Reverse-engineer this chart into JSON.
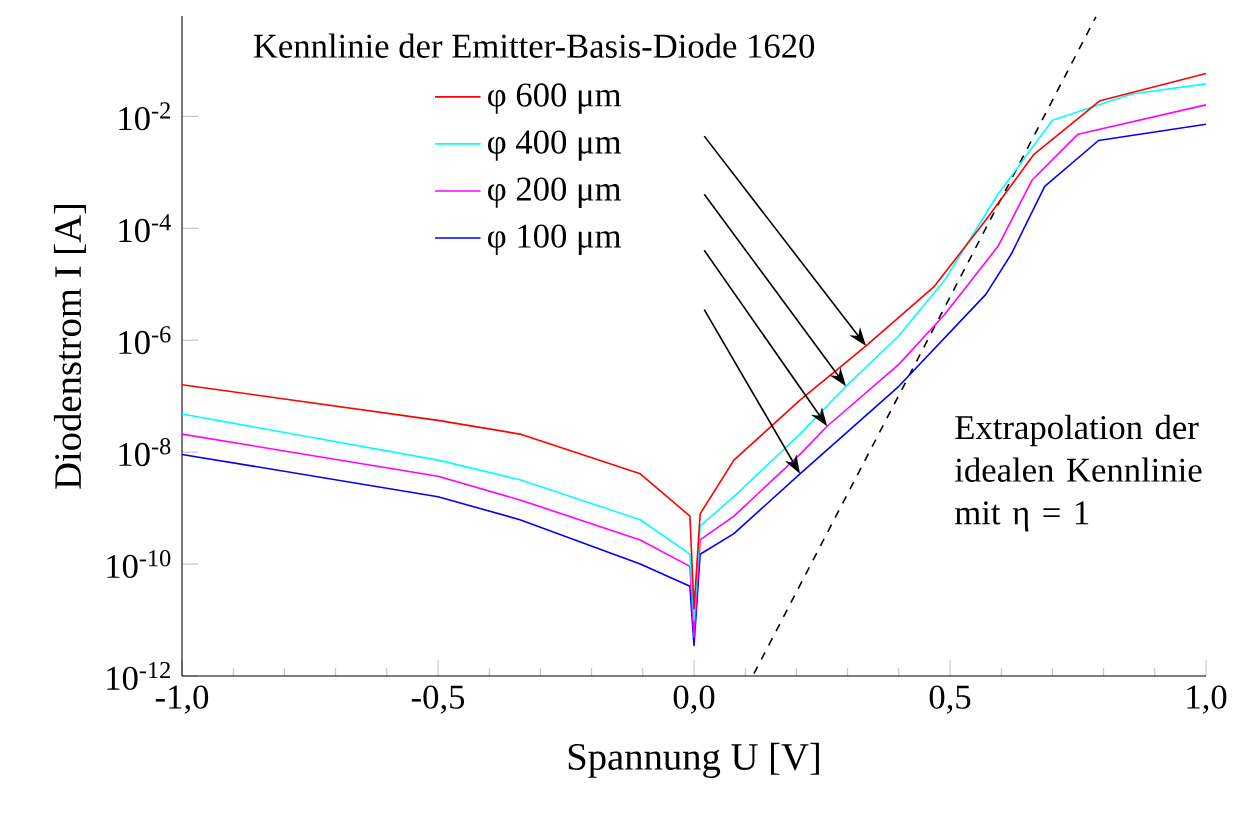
{
  "chart_data": {
    "type": "line",
    "legend_title": "Kennlinie der Emitter-Basis-Diode 1620",
    "xlabel": "Spannung U [V]",
    "ylabel": "Diodenstrom I [A]",
    "annotations": [
      "Extrapolation der idealen Kennlinie mit η = 1"
    ],
    "log": "y",
    "grid": false,
    "legend": "top left",
    "marker": "none",
    "line_style": "solid",
    "xlim": [
      -1.0,
      1.0
    ],
    "xticks": [
      {
        "value": -1.0,
        "label": "-1,0"
      },
      {
        "value": -0.5,
        "label": "-0,5"
      },
      {
        "value": 0.0,
        "label": "0,0"
      },
      {
        "value": 0.5,
        "label": "0,5"
      },
      {
        "value": 1.0,
        "label": "1,0"
      }
    ],
    "ylim": [
      1e-12,
      0.62
    ],
    "yticks": [
      {
        "value": 1e-12,
        "label": "10$^{-12}$"
      },
      {
        "value": 1e-10,
        "label": "10$^{-10}$"
      },
      {
        "value": 1e-08,
        "label": "10$^{-8}$"
      },
      {
        "value": 1e-06,
        "label": "10$^{-6}$"
      },
      {
        "value": 0.0001,
        "label": "10$^{-4}$"
      },
      {
        "value": 0.01,
        "label": "10$^{-2}$"
      }
    ],
    "series": [
      {
        "name": "φ 600 μm",
        "color": "#ff0000",
        "x": [
          -1.0,
          -0.5,
          -0.34,
          -0.105,
          -0.008,
          0.0,
          0.012,
          0.078,
          0.207,
          0.336,
          0.469,
          0.57,
          0.664,
          0.793,
          1.0
        ],
        "values": [
          1.6e-07,
          3.7e-08,
          2.1e-08,
          4.1e-09,
          7.2e-10,
          1.6e-11,
          7.9e-10,
          7.2e-09,
          8.5e-08,
          7.9e-07,
          9.1e-06,
          0.00014,
          0.0021,
          0.019,
          0.058
        ]
      },
      {
        "name": "φ 400 μm",
        "color": "#00ffff",
        "x": [
          -1.0,
          -0.5,
          -0.34,
          -0.105,
          -0.008,
          0.0,
          0.012,
          0.078,
          0.207,
          0.297,
          0.4,
          0.49,
          0.594,
          0.7,
          0.855,
          1.0
        ],
        "values": [
          4.8e-08,
          7.2e-09,
          3.2e-09,
          6.2e-10,
          1.5e-10,
          1e-11,
          4.8e-10,
          1.6e-09,
          2.1e-08,
          1.5e-07,
          1.2e-06,
          1.2e-05,
          0.00041,
          0.0085,
          0.025,
          0.038
        ]
      },
      {
        "name": "φ 200 μm",
        "color": "#ff00ff",
        "x": [
          -1.0,
          -0.5,
          -0.34,
          -0.105,
          -0.008,
          0.0,
          0.012,
          0.078,
          0.207,
          0.26,
          0.4,
          0.49,
          0.594,
          0.66,
          0.75,
          1.0
        ],
        "values": [
          2.1e-08,
          3.7e-09,
          1.4e-09,
          2.7e-10,
          9.1e-11,
          5e-12,
          2.7e-10,
          7.2e-10,
          9.1e-09,
          2.9e-08,
          3.7e-07,
          2.9e-06,
          4.8e-05,
          0.00072,
          0.0048,
          0.016
        ]
      },
      {
        "name": "φ 100 μm",
        "color": "#0000ff",
        "x": [
          -1.0,
          -0.5,
          -0.34,
          -0.105,
          -0.008,
          0.0,
          0.012,
          0.078,
          0.207,
          0.4,
          0.57,
          0.62,
          0.685,
          0.79,
          1.0
        ],
        "values": [
          9.1e-09,
          1.6e-09,
          6.2e-10,
          1e-10,
          4e-11,
          3.5e-12,
          1.5e-10,
          3.5e-10,
          4.1e-09,
          1.5e-07,
          6.6e-06,
          3.5e-05,
          0.00056,
          0.0037,
          0.0072
        ]
      },
      {
        "type": "line",
        "color": "#000000",
        "line_style": "dashed",
        "x": [
          0.117,
          0.785
        ],
        "values": [
          1.1e-12,
          0.6
        ]
      }
    ]
  }
}
